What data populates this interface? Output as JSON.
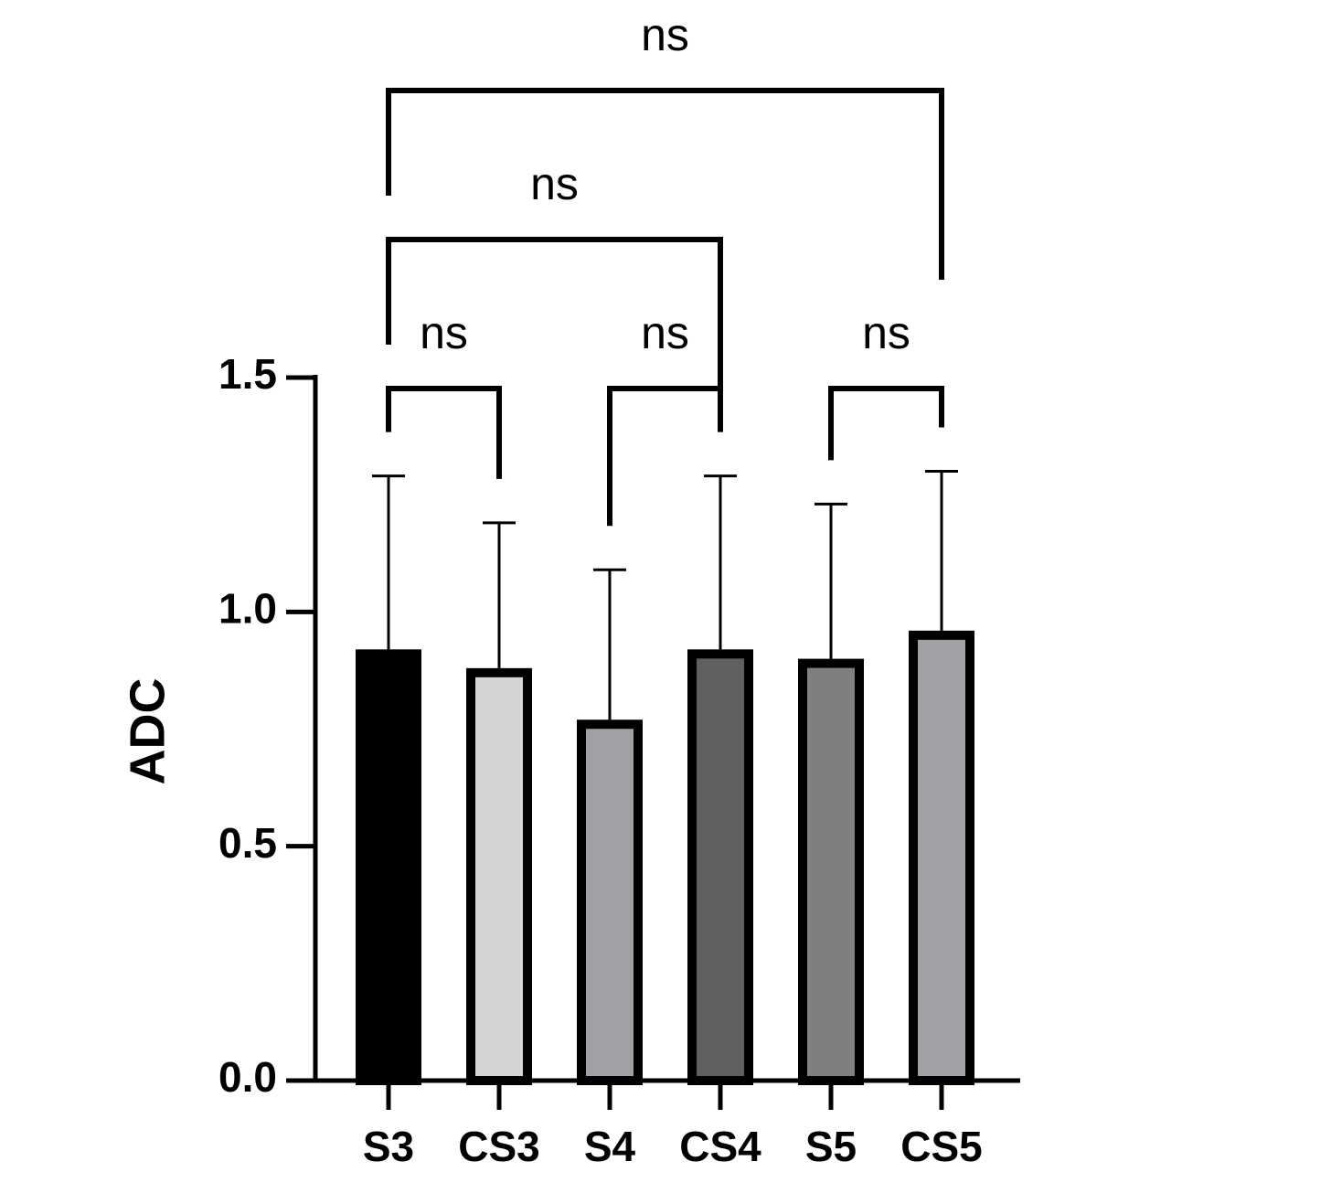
{
  "chart_data": {
    "type": "bar",
    "y_label": "ADC",
    "categories": [
      "S3",
      "CS3",
      "S4",
      "CS4",
      "S5",
      "CS5"
    ],
    "values": [
      0.92,
      0.88,
      0.77,
      0.92,
      0.9,
      0.96
    ],
    "errors": [
      0.37,
      0.31,
      0.32,
      0.37,
      0.33,
      0.34
    ],
    "colors": [
      "#000000",
      "#d4d4d4",
      "#a1a0a5",
      "#606060",
      "#7f7f7f",
      "#a1a0a5"
    ],
    "ylim": [
      0,
      1.5
    ],
    "yticks": [
      {
        "value": 0,
        "label": "0.0"
      },
      {
        "value": 0.5,
        "label": "0.5"
      },
      {
        "value": 1,
        "label": "1.0"
      },
      {
        "value": 1.5,
        "label": "1.5"
      }
    ],
    "comparisons": [
      {
        "groups": [
          0,
          1
        ],
        "label": "ns"
      },
      {
        "groups": [
          2,
          3
        ],
        "label": "ns"
      },
      {
        "groups": [
          4,
          5
        ],
        "label": "ns"
      },
      {
        "groups": [
          0,
          3
        ],
        "label": "ns"
      },
      {
        "groups": [
          0,
          5
        ],
        "label": "ns"
      }
    ]
  }
}
